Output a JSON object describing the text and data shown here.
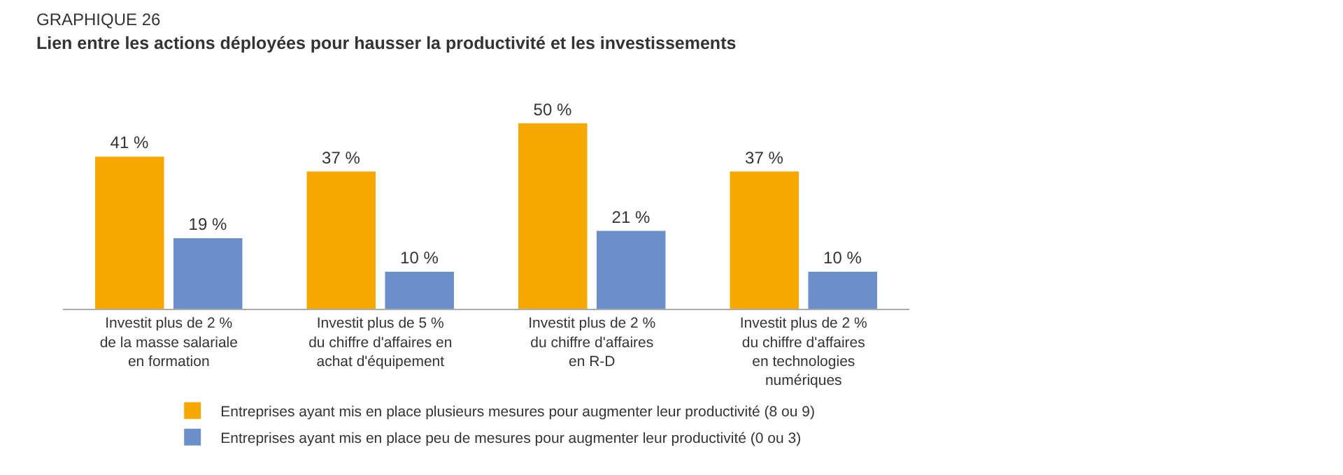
{
  "chart_data": {
    "type": "bar",
    "title": "GRAPHIQUE 26",
    "subtitle": "Lien entre les actions déployées pour hausser la productivité et les investissements",
    "categories": [
      "Investit plus de 2 %\nde la masse salariale\nen formation",
      "Investit plus de 5 %\ndu chiffre d'affaires en\nachat d'équipement",
      "Investit plus de 2 %\ndu chiffre d'affaires\nen R-D",
      "Investit plus de 2 %\ndu chiffre d'affaires\nen technologies\nnumériques"
    ],
    "series": [
      {
        "name": "Entreprises ayant mis en place plusieurs mesures pour augmenter leur productivité (8 ou 9)",
        "color": "#f5a800",
        "values": [
          41,
          37,
          50,
          37
        ],
        "value_labels": [
          "41 %",
          "37 %",
          "50 %",
          "37 %"
        ]
      },
      {
        "name": "Entreprises ayant mis en place peu de mesures pour augmenter leur productivité (0 ou 3)",
        "color": "#6b8fc9",
        "values": [
          19,
          10,
          21,
          10
        ],
        "value_labels": [
          "19 %",
          "10 %",
          "21 %",
          "10 %"
        ]
      }
    ],
    "legend": "bottom left",
    "grid": false
  }
}
